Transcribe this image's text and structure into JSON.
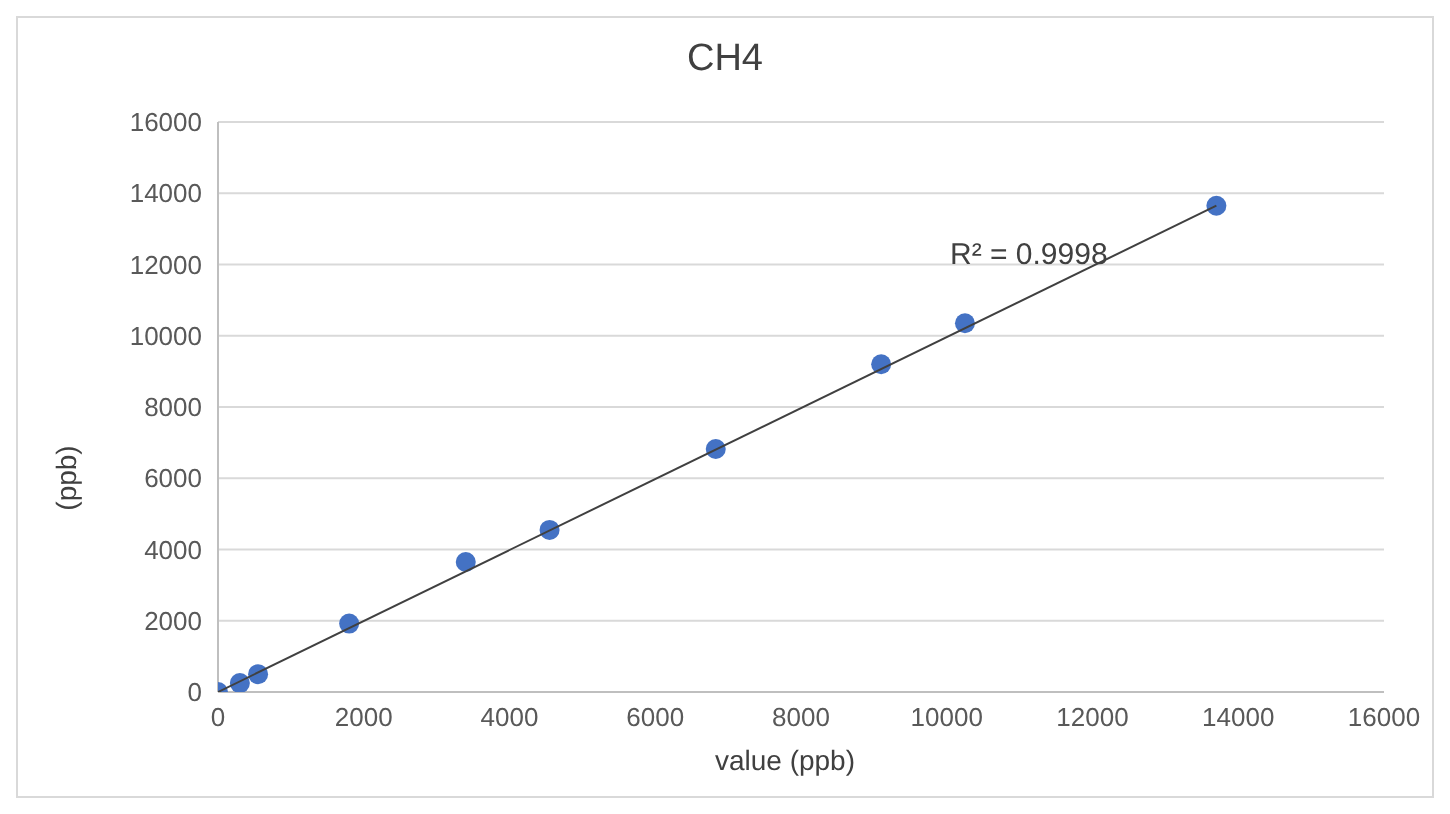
{
  "chart_data": {
    "type": "scatter",
    "title": "CH4",
    "xlabel": "value (ppb)",
    "ylabel": "(ppb)",
    "series": [
      {
        "color": "#4472c4",
        "x": [
          0,
          300,
          550,
          1800,
          3400,
          4550,
          6830,
          9100,
          10250,
          13700
        ],
        "values": [
          0,
          250,
          500,
          1920,
          3650,
          4550,
          6820,
          9200,
          10350,
          13650
        ]
      },
      {
        "type": "line",
        "color": "#404040",
        "x": [
          0,
          13700
        ],
        "values": [
          0,
          13650
        ],
        "marker": "none"
      }
    ],
    "annotations": [
      "R² = 0.9998"
    ],
    "xlim": [
      0,
      16000
    ],
    "xticks": [
      0,
      2000,
      4000,
      6000,
      8000,
      10000,
      12000,
      14000,
      16000
    ],
    "ylim": [
      0,
      16000
    ],
    "yticks": [
      0,
      2000,
      4000,
      6000,
      8000,
      10000,
      12000,
      14000,
      16000
    ],
    "grid": "y",
    "marker": "circle",
    "legend": false
  }
}
